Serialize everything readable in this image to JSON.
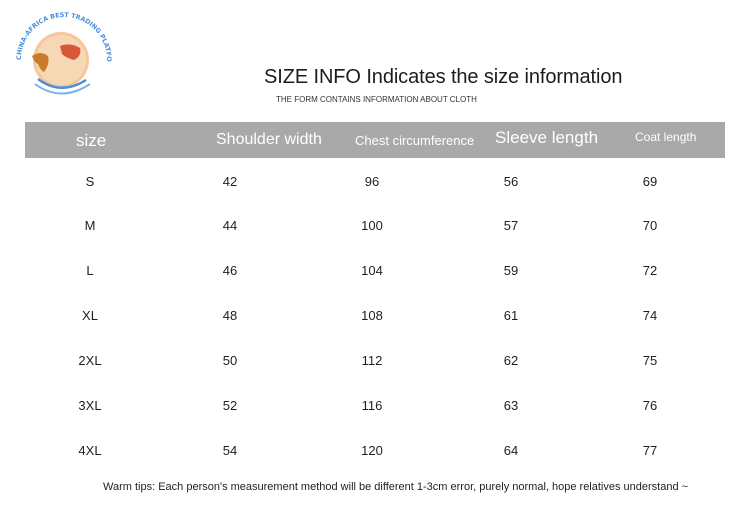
{
  "logo": {
    "text": "CHINA-AFRICA BEST TRADING PLATFORM"
  },
  "title": "SIZE INFO Indicates the size information",
  "subtitle": "THE FORM CONTAINS INFORMATION ABOUT CLOTH",
  "table": {
    "headers": [
      "size",
      "Shoulder width",
      "Chest circumference",
      "Sleeve length",
      "Coat length"
    ],
    "rows": [
      [
        "S",
        "42",
        "96",
        "56",
        "69"
      ],
      [
        "M",
        "44",
        "100",
        "57",
        "70"
      ],
      [
        "L",
        "46",
        "104",
        "59",
        "72"
      ],
      [
        "XL",
        "48",
        "108",
        "61",
        "74"
      ],
      [
        "2XL",
        "50",
        "112",
        "62",
        "75"
      ],
      [
        "3XL",
        "52",
        "116",
        "63",
        "76"
      ],
      [
        "4XL",
        "54",
        "120",
        "64",
        "77"
      ]
    ]
  },
  "tips": "Warm tips: Each person's measurement method will be different 1-3cm error, purely normal, hope relatives understand ~",
  "colors": {
    "header_band": "#a9a9a9",
    "header_text": "#ffffff",
    "logo_blue": "#4a8fd8",
    "logo_orange": "#f0a15a"
  }
}
